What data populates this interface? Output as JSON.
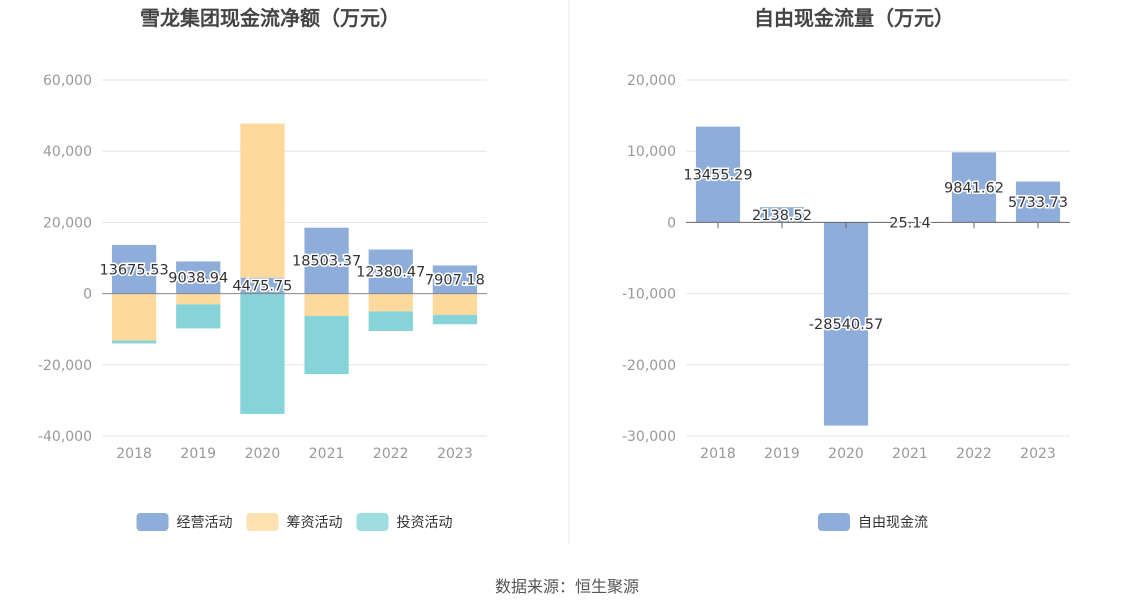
{
  "source_text": "数据来源：恒生聚源",
  "chart_data": [
    {
      "type": "bar",
      "stacked": true,
      "title": "雪龙集团现金流净额（万元）",
      "categories": [
        "2018",
        "2019",
        "2020",
        "2021",
        "2022",
        "2023"
      ],
      "ylim": [
        -40000,
        60000
      ],
      "yticks": [
        -40000,
        -20000,
        0,
        20000,
        40000,
        60000
      ],
      "ytick_labels": [
        "-40,000",
        "-20,000",
        "0",
        "20,000",
        "40,000",
        "60,000"
      ],
      "grid": true,
      "legend_position": "bottom",
      "series": [
        {
          "name": "经营活动",
          "color": "#8eaddb",
          "values": [
            13675.53,
            9038.94,
            4475.75,
            18503.37,
            12380.47,
            7907.18
          ]
        },
        {
          "name": "筹资活动",
          "color": "#fdd99d",
          "values": [
            -13200,
            -3000,
            43300,
            -6300,
            -5000,
            -6000
          ]
        },
        {
          "name": "投资活动",
          "color": "#87d4d8",
          "values": [
            -800,
            -6800,
            -33800,
            -16300,
            -5500,
            -2600
          ]
        }
      ],
      "data_labels": [
        "13675.53",
        "9038.94",
        "4475.75",
        "18503.37",
        "12380.47",
        "7907.18"
      ]
    },
    {
      "type": "bar",
      "title": "自由现金流量（万元）",
      "categories": [
        "2018",
        "2019",
        "2020",
        "2021",
        "2022",
        "2023"
      ],
      "ylim": [
        -30000,
        20000
      ],
      "yticks": [
        -30000,
        -20000,
        -10000,
        0,
        10000,
        20000
      ],
      "ytick_labels": [
        "-30,000",
        "-20,000",
        "-10,000",
        "0",
        "10,000",
        "20,000"
      ],
      "grid": true,
      "legend_position": "bottom",
      "series": [
        {
          "name": "自由现金流",
          "color": "#8eaddb",
          "values": [
            13455.29,
            2138.52,
            -28540.57,
            25.14,
            9841.62,
            5733.73
          ]
        }
      ],
      "data_labels": [
        "13455.29",
        "2138.52",
        "-28540.57",
        "25.14",
        "9841.62",
        "5733.73"
      ]
    }
  ]
}
